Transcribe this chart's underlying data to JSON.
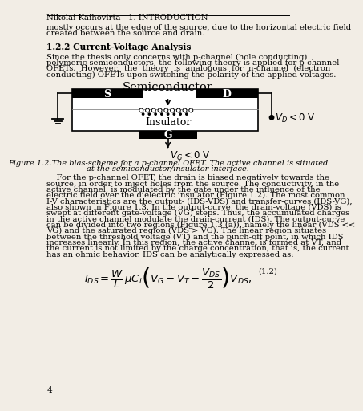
{
  "header_left": "Nikolai Kaihovirta",
  "header_right": "1. INTRODUCTION",
  "page_number": "4",
  "intro_text_1": "mostly occurs at the edge of the source, due to the horizontal electric field",
  "intro_text_2": "created between the source and drain.",
  "section_title": "1.2.2 Current-Voltage Analysis",
  "para1_lines": [
    "Since the thesis only concerns with p-channel (hole conducting)",
    "polymeric semiconductors, the following theory is applied for p-channel",
    "OFETs.  However,  the  theory  is  analogous  for  n-channel  (electron",
    "conducting) OFETs upon switching the polarity of the applied voltages."
  ],
  "figure_caption_1": "Figure 1.2.The bias-scheme for a p-channel OFET. The active channel is situated",
  "figure_caption_2": "at the semiconductor/insulator interface.",
  "body_lines": [
    "    For the p-channel OFET, the drain is biased negatively towards the",
    "source, in order to inject holes from the source. The conductivity, in the",
    "active channel, is modulated by the gate under the influence of the",
    "electric field over the dielectric insulator (Figure 1.2). The most common",
    "I-V characteristics are the output- (IDS-VDS) and transfer-curves (IDS-VG),",
    "also shown in Figure 1.3. In the output-curve, the drain-voltage (VDS) is",
    "swept at different gate-voltage (VG) steps. Thus, the accumulated charges",
    "in the active channel modulate the drain-current (IDS). The output-curve",
    "can be divided into two regions (Figure 1.3 (a)), namely the linear (VDS <<",
    "VG) and the saturated region (VDS > VG). The linear region situates",
    "between the threshold voltage (VT) and the pinch-off point, in which IDS",
    "increases linearly. In this region, the active channel is formed at VT, and",
    "the current is not limited by the charge concentration, that is, the current",
    "has an ohmic behavior. IDS can be analytically expressed as:"
  ],
  "bg_color": "#f2ede5"
}
